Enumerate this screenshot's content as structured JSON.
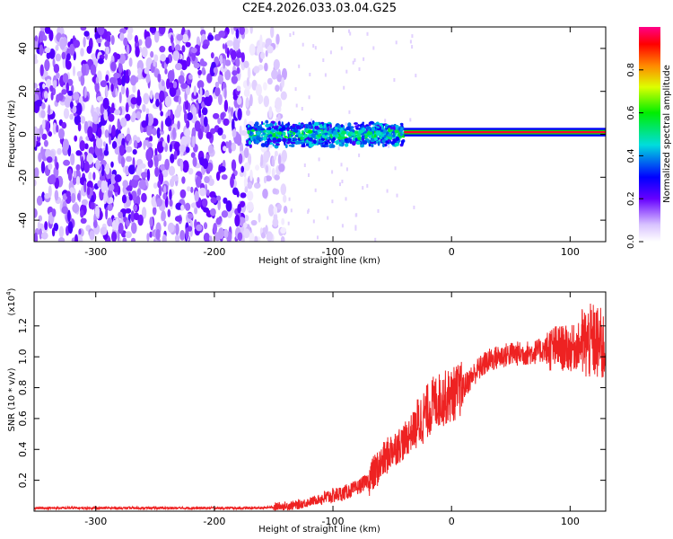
{
  "title": "C2E4.2026.033.03.04.G25",
  "chart_data": [
    {
      "type": "heatmap",
      "xlabel": "Height of straight line (km)",
      "ylabel": "Frequency (Hz)",
      "xlim": [
        -352,
        130
      ],
      "ylim": [
        -50,
        50
      ],
      "xticks": [
        -300,
        -200,
        -100,
        0,
        100
      ],
      "yticks": [
        -40,
        -20,
        0,
        20,
        40
      ],
      "colorbar": {
        "label": "Normalized spectral amplitude",
        "range": [
          0.0,
          1.0
        ],
        "ticks": [
          0.0,
          0.2,
          0.4,
          0.6,
          0.8
        ],
        "tick_labels": [
          "0.0",
          "0.2",
          "0.4",
          "0.6",
          "0.8"
        ]
      },
      "regions": [
        {
          "x": [
            -352,
            -170
          ],
          "y": [
            -50,
            50
          ],
          "amplitude": 0.15
        },
        {
          "x": [
            -170,
            -140
          ],
          "y": [
            -50,
            50
          ],
          "amplitude": 0.05
        },
        {
          "x": [
            -170,
            -40
          ],
          "y": [
            -6,
            6
          ],
          "amplitude": 0.45
        },
        {
          "x": [
            -40,
            130
          ],
          "y": [
            -1,
            3
          ],
          "amplitude": 0.95
        }
      ]
    },
    {
      "type": "line",
      "xlabel": "Height of straight line (km)",
      "ylabel": "SNR (10 * v/v)",
      "y_multiplier": "(x10",
      "y_multiplier_exp": "4",
      "y_multiplier_close": ")",
      "xlim": [
        -352,
        130
      ],
      "ylim": [
        0,
        1.42
      ],
      "xticks": [
        -300,
        -200,
        -100,
        0,
        100
      ],
      "yticks": [
        0.2,
        0.4,
        0.6,
        0.8,
        1.0,
        1.2
      ],
      "ytick_labels": [
        "0.2",
        "0.4",
        "0.6",
        "0.8",
        "1.0",
        "1.2"
      ],
      "color": "#ee2222",
      "series": [
        {
          "x": [
            -352,
            -300,
            -250,
            -200,
            -160,
            -130,
            -110,
            -100,
            -90,
            -80,
            -70,
            -60,
            -50,
            -40,
            -30,
            -20,
            -15,
            -10,
            0,
            10,
            20,
            30,
            40,
            50,
            60,
            70,
            80,
            90,
            100,
            110,
            120,
            130
          ],
          "values": [
            0.02,
            0.02,
            0.02,
            0.02,
            0.02,
            0.04,
            0.08,
            0.1,
            0.12,
            0.15,
            0.2,
            0.3,
            0.4,
            0.45,
            0.55,
            0.65,
            0.7,
            0.72,
            0.75,
            0.8,
            0.9,
            0.97,
            1.0,
            1.02,
            1.02,
            1.03,
            1.05,
            1.06,
            1.05,
            1.08,
            1.1,
            1.05
          ]
        }
      ]
    }
  ]
}
